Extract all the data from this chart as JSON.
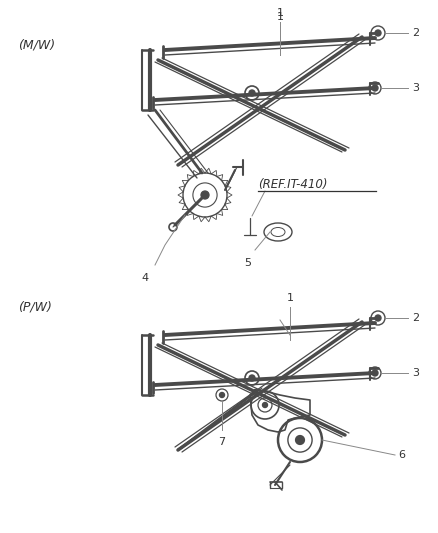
{
  "bg_color": "#ffffff",
  "lc": "#4a4a4a",
  "tc": "#333333",
  "leader_c": "#888888",
  "fig_width": 4.39,
  "fig_height": 5.33,
  "mw_label": "(M/W)",
  "pw_label": "(P/W)",
  "ref_label": "(REF.IT-410)"
}
